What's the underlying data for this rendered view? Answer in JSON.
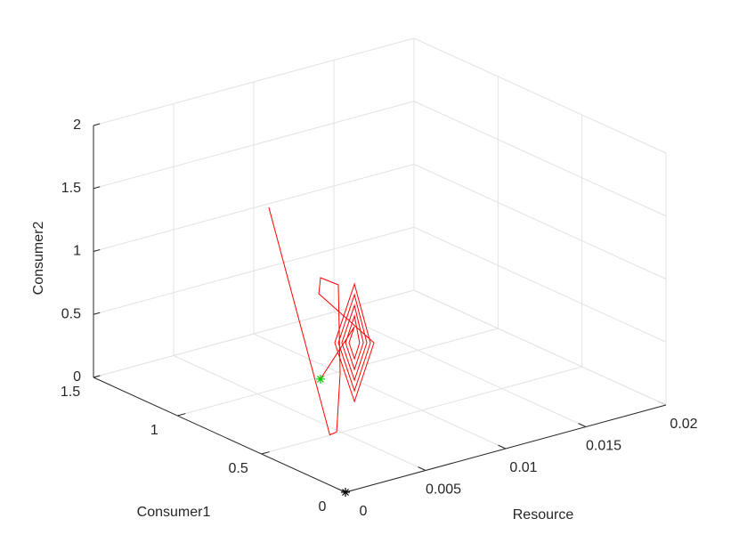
{
  "chart_data": {
    "type": "line3d",
    "xlabel": "Resource",
    "ylabel": "Consumer1",
    "zlabel": "Consumer2",
    "xlim": [
      0,
      0.02
    ],
    "xticks": [
      0,
      0.005,
      0.01,
      0.015,
      0.02
    ],
    "ylim": [
      0,
      1.5
    ],
    "yticks": [
      0,
      0.5,
      1,
      1.5
    ],
    "zlim": [
      0,
      2
    ],
    "zticks": [
      0,
      0.5,
      1,
      1.5,
      2
    ],
    "grid": true,
    "series": [
      {
        "color": "#ff0000",
        "x": [
          0.002,
          0.0042,
          0.0045,
          0.006,
          0.006,
          0.006,
          0.006,
          0.006,
          0.006,
          0.006,
          0.006,
          0.006,
          0.006,
          0.006,
          0.006,
          0.006,
          0.006,
          0.006,
          0.006,
          0.006,
          0.006,
          0.006,
          0.006,
          0.006,
          0.006,
          0.006,
          0.006,
          0.003
        ],
        "y": [
          0.647,
          0.494,
          0.482,
          0.604,
          0.615,
          0.721,
          0.731,
          0.403,
          0.519,
          0.636,
          0.519,
          0.424,
          0.519,
          0.615,
          0.519,
          0.445,
          0.519,
          0.594,
          0.519,
          0.466,
          0.519,
          0.572,
          0.519,
          0.488,
          0.519,
          0.551,
          0.519,
          0.435
        ],
        "z": [
          1.8,
          0.01,
          0.03,
          0.365,
          1.065,
          1.057,
          0.924,
          0.734,
          0.197,
          0.593,
          1.13,
          0.721,
          0.282,
          0.606,
          1.045,
          0.709,
          0.367,
          0.618,
          0.96,
          0.696,
          0.452,
          0.632,
          0.876,
          0.682,
          0.536,
          0.644,
          0.791,
          0.53
        ]
      }
    ],
    "markers": [
      {
        "x": 0.003,
        "y": 0.435,
        "z": 0.53,
        "color": "#00cc00"
      },
      {
        "x": 0,
        "y": 0,
        "z": 0,
        "color": "#000000"
      }
    ]
  }
}
